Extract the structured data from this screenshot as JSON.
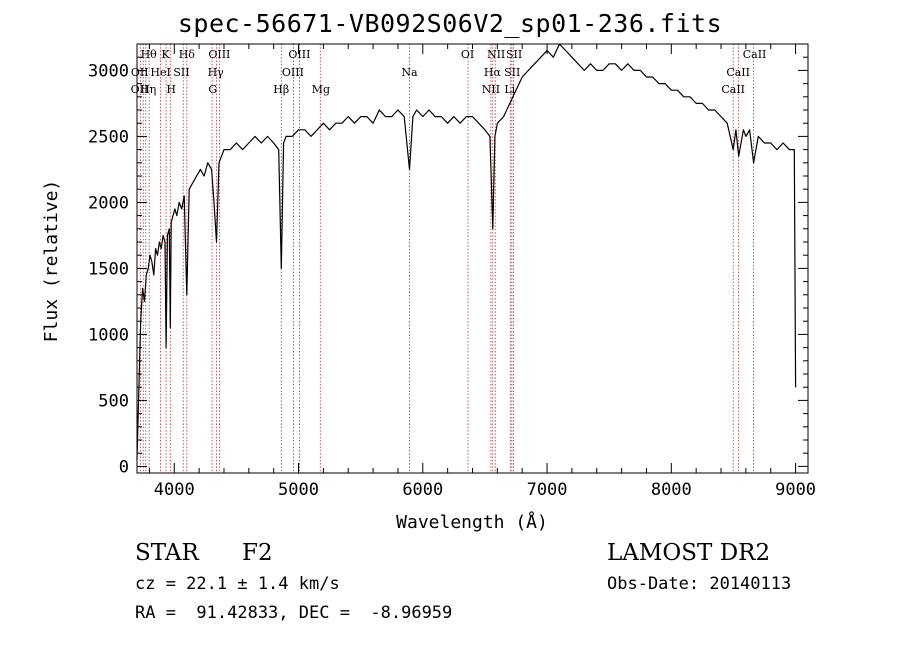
{
  "chart_data": {
    "type": "line",
    "title": "spec-56671-VB092S06V2_sp01-236.fits",
    "xlabel": "Wavelength (Å)",
    "ylabel": "Flux (relative)",
    "xlim": [
      3700,
      9100
    ],
    "ylim": [
      -50,
      3200
    ],
    "xticks": [
      4000,
      5000,
      6000,
      7000,
      8000,
      9000
    ],
    "yticks": [
      0,
      500,
      1000,
      1500,
      2000,
      2500,
      3000
    ],
    "grid": false,
    "legend": "none",
    "line_color": "#000000",
    "marker_line_color": "#b03030",
    "series": [
      {
        "x": [
          3700,
          3715,
          3730,
          3745,
          3760,
          3775,
          3790,
          3805,
          3820,
          3835,
          3850,
          3865,
          3880,
          3895,
          3910,
          3925,
          3934,
          3945,
          3960,
          3968,
          3975,
          3990,
          4005,
          4020,
          4040,
          4060,
          4080,
          4101,
          4120,
          4150,
          4180,
          4210,
          4240,
          4270,
          4300,
          4320,
          4340,
          4360,
          4380,
          4400,
          4450,
          4500,
          4550,
          4600,
          4650,
          4700,
          4750,
          4800,
          4840,
          4861,
          4880,
          4900,
          4950,
          5000,
          5050,
          5100,
          5150,
          5200,
          5250,
          5300,
          5350,
          5400,
          5450,
          5500,
          5550,
          5600,
          5650,
          5700,
          5750,
          5800,
          5850,
          5893,
          5920,
          5950,
          6000,
          6050,
          6100,
          6150,
          6200,
          6250,
          6300,
          6350,
          6400,
          6450,
          6500,
          6540,
          6563,
          6580,
          6600,
          6650,
          6700,
          6750,
          6800,
          6850,
          6900,
          6950,
          7000,
          7050,
          7100,
          7150,
          7200,
          7250,
          7300,
          7350,
          7400,
          7450,
          7500,
          7550,
          7600,
          7650,
          7700,
          7750,
          7800,
          7850,
          7900,
          7950,
          8000,
          8050,
          8100,
          8150,
          8200,
          8250,
          8300,
          8350,
          8400,
          8450,
          8498,
          8520,
          8542,
          8580,
          8600,
          8630,
          8662,
          8700,
          8750,
          8800,
          8850,
          8900,
          8950,
          8990,
          9000
        ],
        "y": [
          50,
          600,
          1100,
          1350,
          1250,
          1450,
          1500,
          1600,
          1550,
          1450,
          1650,
          1600,
          1700,
          1650,
          1750,
          1700,
          900,
          1750,
          1800,
          1050,
          1850,
          1900,
          1950,
          1900,
          2000,
          1950,
          2050,
          1300,
          2100,
          2150,
          2200,
          2250,
          2200,
          2300,
          2250,
          2000,
          1700,
          2300,
          2350,
          2400,
          2400,
          2450,
          2400,
          2450,
          2500,
          2450,
          2500,
          2450,
          2400,
          1500,
          2450,
          2500,
          2500,
          2550,
          2550,
          2500,
          2550,
          2600,
          2550,
          2600,
          2600,
          2650,
          2600,
          2650,
          2650,
          2600,
          2700,
          2650,
          2650,
          2700,
          2650,
          2250,
          2650,
          2700,
          2650,
          2700,
          2650,
          2650,
          2600,
          2650,
          2600,
          2650,
          2650,
          2600,
          2550,
          2500,
          1800,
          2500,
          2600,
          2650,
          2750,
          2850,
          2950,
          3000,
          3050,
          3100,
          3150,
          3100,
          3200,
          3150,
          3100,
          3050,
          3000,
          3050,
          3000,
          3000,
          3050,
          3050,
          3000,
          3050,
          3000,
          3000,
          2950,
          2950,
          2900,
          2900,
          2850,
          2850,
          2800,
          2800,
          2750,
          2750,
          2700,
          2700,
          2650,
          2600,
          2400,
          2550,
          2350,
          2550,
          2500,
          2550,
          2300,
          2500,
          2450,
          2450,
          2400,
          2450,
          2400,
          2400,
          600
        ]
      }
    ],
    "lines": [
      {
        "x": 3727,
        "label": "OII"
      },
      {
        "x": 3750,
        "label": "OII"
      },
      {
        "x": 3771,
        "label": "Hη"
      },
      {
        "x": 3798,
        "label": "Hθ"
      },
      {
        "x": 3889,
        "label": "HeI"
      },
      {
        "x": 3934,
        "label": "K"
      },
      {
        "x": 3968,
        "label": "H"
      },
      {
        "x": 4072,
        "label": "SII"
      },
      {
        "x": 4101,
        "label": "Hδ"
      },
      {
        "x": 4304,
        "label": "G"
      },
      {
        "x": 4340,
        "label": "Hγ"
      },
      {
        "x": 4363,
        "label": "OIII"
      },
      {
        "x": 4861,
        "label": "Hβ"
      },
      {
        "x": 4959,
        "label": "OIII"
      },
      {
        "x": 5007,
        "label": "OIII"
      },
      {
        "x": 5175,
        "label": "Mg"
      },
      {
        "x": 5893,
        "label": "Na"
      },
      {
        "x": 6364,
        "label": "OI"
      },
      {
        "x": 6548,
        "label": "NII"
      },
      {
        "x": 6563,
        "label": "Hα"
      },
      {
        "x": 6583,
        "label": "NII"
      },
      {
        "x": 6707,
        "label": "Li"
      },
      {
        "x": 6717,
        "label": "SII"
      },
      {
        "x": 6731,
        "label": "SII"
      },
      {
        "x": 8498,
        "label": "CaII"
      },
      {
        "x": 8542,
        "label": "CaII"
      },
      {
        "x": 8662,
        "label": "CaII"
      }
    ],
    "labels": [
      {
        "text": "Hθ",
        "x": 3794,
        "y": 3095
      },
      {
        "text": "K",
        "x": 3930,
        "y": 3095
      },
      {
        "text": "Hδ",
        "x": 4101,
        "y": 3095
      },
      {
        "text": "OIII",
        "x": 4363,
        "y": 3095
      },
      {
        "text": "OIII",
        "x": 5007,
        "y": 3095
      },
      {
        "text": "OI",
        "x": 6360,
        "y": 3095
      },
      {
        "text": "NII",
        "x": 6590,
        "y": 3095
      },
      {
        "text": "SII",
        "x": 6735,
        "y": 3095
      },
      {
        "text": "CaII",
        "x": 8670,
        "y": 3095
      },
      {
        "text": "OII",
        "x": 3722,
        "y": 2958
      },
      {
        "text": "HeI",
        "x": 3890,
        "y": 2958
      },
      {
        "text": "SII",
        "x": 4058,
        "y": 2958
      },
      {
        "text": "Hγ",
        "x": 4333,
        "y": 2958
      },
      {
        "text": "OIII",
        "x": 4955,
        "y": 2958
      },
      {
        "text": "Na",
        "x": 5893,
        "y": 2958
      },
      {
        "text": "Hα",
        "x": 6560,
        "y": 2958
      },
      {
        "text": "SII",
        "x": 6720,
        "y": 2958
      },
      {
        "text": "CaII",
        "x": 8538,
        "y": 2958
      },
      {
        "text": "OII",
        "x": 3720,
        "y": 2828
      },
      {
        "text": "Hη",
        "x": 3790,
        "y": 2828
      },
      {
        "text": "H",
        "x": 3975,
        "y": 2828
      },
      {
        "text": "G",
        "x": 4310,
        "y": 2828
      },
      {
        "text": "Hβ",
        "x": 4861,
        "y": 2828
      },
      {
        "text": "Mg",
        "x": 5180,
        "y": 2828
      },
      {
        "text": "NII",
        "x": 6548,
        "y": 2828
      },
      {
        "text": "Li",
        "x": 6700,
        "y": 2828
      },
      {
        "text": "CaII",
        "x": 8498,
        "y": 2828
      }
    ]
  },
  "info": {
    "object_class": "STAR",
    "subclass": "F2",
    "survey": "LAMOST DR2",
    "redshift": "cz = 22.1 ± 1.4 km/s",
    "obs_date": "Obs-Date: 20140113",
    "coords": "RA =  91.42833, DEC =  -8.96959"
  }
}
